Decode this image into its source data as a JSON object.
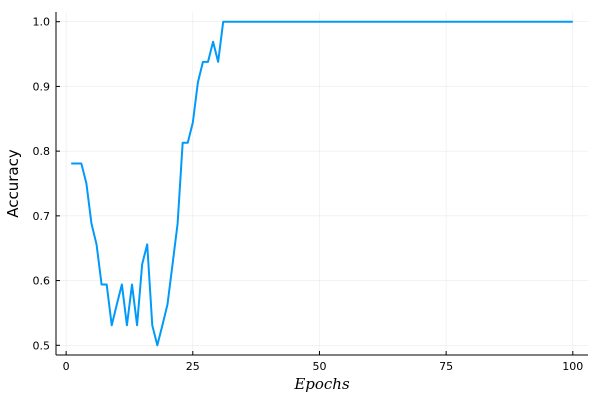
{
  "chart_data": {
    "type": "line",
    "xlabel": "Epochs",
    "ylabel": "Accuracy",
    "xlim": [
      -2,
      103
    ],
    "ylim": [
      0.485,
      1.015
    ],
    "xticks": [
      0,
      25,
      50,
      75,
      100
    ],
    "yticks": [
      0.5,
      0.6,
      0.7,
      0.8,
      0.9,
      1.0
    ],
    "xtick_labels": [
      "0",
      "25",
      "50",
      "75",
      "100"
    ],
    "ytick_labels": [
      "0.5",
      "0.6",
      "0.7",
      "0.8",
      "0.9",
      "1.0"
    ],
    "grid": true,
    "legend": "none",
    "series": [
      {
        "color": "#009AFA",
        "x": [
          1,
          2,
          3,
          4,
          5,
          6,
          7,
          8,
          9,
          10,
          11,
          12,
          13,
          14,
          15,
          16,
          17,
          18,
          19,
          20,
          21,
          22,
          23,
          24,
          25,
          26,
          27,
          28,
          29,
          30,
          31,
          32,
          33,
          34,
          35,
          36,
          37,
          38,
          39,
          40,
          41,
          42,
          43,
          44,
          45,
          46,
          47,
          48,
          49,
          50,
          51,
          52,
          53,
          54,
          55,
          56,
          57,
          58,
          59,
          60,
          61,
          62,
          63,
          64,
          65,
          66,
          67,
          68,
          69,
          70,
          71,
          72,
          73,
          74,
          75,
          76,
          77,
          78,
          79,
          80,
          81,
          82,
          83,
          84,
          85,
          86,
          87,
          88,
          89,
          90,
          91,
          92,
          93,
          94,
          95,
          96,
          97,
          98,
          99,
          100
        ],
        "y": [
          0.781,
          0.781,
          0.781,
          0.75,
          0.688,
          0.656,
          0.594,
          0.594,
          0.531,
          0.563,
          0.594,
          0.531,
          0.594,
          0.531,
          0.625,
          0.656,
          0.531,
          0.5,
          0.531,
          0.563,
          0.625,
          0.688,
          0.813,
          0.813,
          0.844,
          0.906,
          0.938,
          0.938,
          0.969,
          0.938,
          1.0,
          1.0,
          1.0,
          1.0,
          1.0,
          1.0,
          1.0,
          1.0,
          1.0,
          1.0,
          1.0,
          1.0,
          1.0,
          1.0,
          1.0,
          1.0,
          1.0,
          1.0,
          1.0,
          1.0,
          1.0,
          1.0,
          1.0,
          1.0,
          1.0,
          1.0,
          1.0,
          1.0,
          1.0,
          1.0,
          1.0,
          1.0,
          1.0,
          1.0,
          1.0,
          1.0,
          1.0,
          1.0,
          1.0,
          1.0,
          1.0,
          1.0,
          1.0,
          1.0,
          1.0,
          1.0,
          1.0,
          1.0,
          1.0,
          1.0,
          1.0,
          1.0,
          1.0,
          1.0,
          1.0,
          1.0,
          1.0,
          1.0,
          1.0,
          1.0,
          1.0,
          1.0,
          1.0,
          1.0,
          1.0,
          1.0,
          1.0,
          1.0,
          1.0,
          1.0
        ]
      }
    ]
  }
}
